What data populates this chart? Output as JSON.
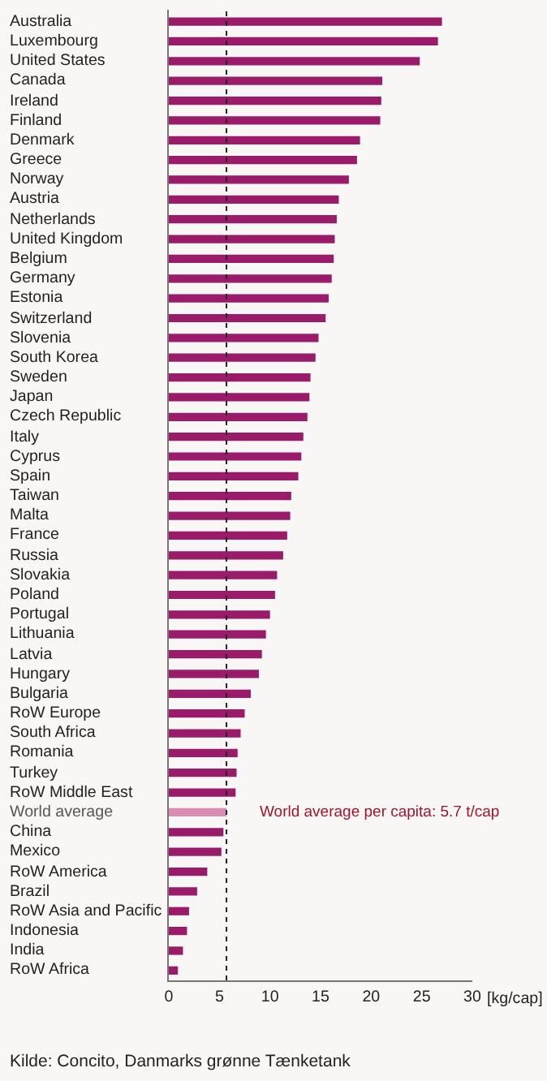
{
  "chart_data": {
    "type": "bar",
    "orientation": "horizontal",
    "categories": [
      "Australia",
      "Luxembourg",
      "United States",
      "Canada",
      "Ireland",
      "Finland",
      "Denmark",
      "Greece",
      "Norway",
      "Austria",
      "Netherlands",
      "United Kingdom",
      "Belgium",
      "Germany",
      "Estonia",
      "Switzerland",
      "Slovenia",
      "South Korea",
      "Sweden",
      "Japan",
      "Czech Republic",
      "Italy",
      "Cyprus",
      "Spain",
      "Taiwan",
      "Malta",
      "France",
      "Russia",
      "Slovakia",
      "Poland",
      "Portugal",
      "Lithuania",
      "Latvia",
      "Hungary",
      "Bulgaria",
      "RoW Europe",
      "South Africa",
      "Romania",
      "Turkey",
      "RoW Middle East",
      "World average",
      "China",
      "Mexico",
      "RoW America",
      "Brazil",
      "RoW Asia and Pacific",
      "Indonesia",
      "India",
      "RoW Africa"
    ],
    "values": [
      27.0,
      26.6,
      24.8,
      21.1,
      21.0,
      20.9,
      18.9,
      18.6,
      17.8,
      16.8,
      16.6,
      16.4,
      16.3,
      16.1,
      15.8,
      15.5,
      14.8,
      14.5,
      14.0,
      13.9,
      13.7,
      13.3,
      13.1,
      12.8,
      12.1,
      12.0,
      11.7,
      11.3,
      10.7,
      10.5,
      10.0,
      9.6,
      9.2,
      8.9,
      8.1,
      7.5,
      7.1,
      6.8,
      6.7,
      6.6,
      5.7,
      5.4,
      5.2,
      3.8,
      2.8,
      2.0,
      1.8,
      1.4,
      0.9
    ],
    "colors": [
      "#9b1b6b",
      "#9b1b6b",
      "#9b1b6b",
      "#9b1b6b",
      "#9b1b6b",
      "#9b1b6b",
      "#9b1b6b",
      "#9b1b6b",
      "#9b1b6b",
      "#9b1b6b",
      "#9b1b6b",
      "#9b1b6b",
      "#9b1b6b",
      "#9b1b6b",
      "#9b1b6b",
      "#9b1b6b",
      "#9b1b6b",
      "#9b1b6b",
      "#9b1b6b",
      "#9b1b6b",
      "#9b1b6b",
      "#9b1b6b",
      "#9b1b6b",
      "#9b1b6b",
      "#9b1b6b",
      "#9b1b6b",
      "#9b1b6b",
      "#9b1b6b",
      "#9b1b6b",
      "#9b1b6b",
      "#9b1b6b",
      "#9b1b6b",
      "#9b1b6b",
      "#9b1b6b",
      "#9b1b6b",
      "#9b1b6b",
      "#9b1b6b",
      "#9b1b6b",
      "#9b1b6b",
      "#9b1b6b",
      "#d98db3",
      "#9b1b6b",
      "#9b1b6b",
      "#9b1b6b",
      "#9b1b6b",
      "#9b1b6b",
      "#9b1b6b",
      "#9b1b6b",
      "#9b1b6b"
    ],
    "xlim": [
      0,
      30
    ],
    "xticks": [
      0,
      5,
      10,
      15,
      20,
      25,
      30
    ],
    "xlabel": "[kg/cap]",
    "ref_lines": [
      {
        "axis": "x",
        "value": 5.7,
        "label": "World average per capita: 5.7 t/cap",
        "color": "#222222",
        "line_style": "dotted"
      }
    ],
    "annotations": [
      "Kilde: Concito, Danmarks grønne Tænketank"
    ],
    "grid": false,
    "legend": false
  }
}
